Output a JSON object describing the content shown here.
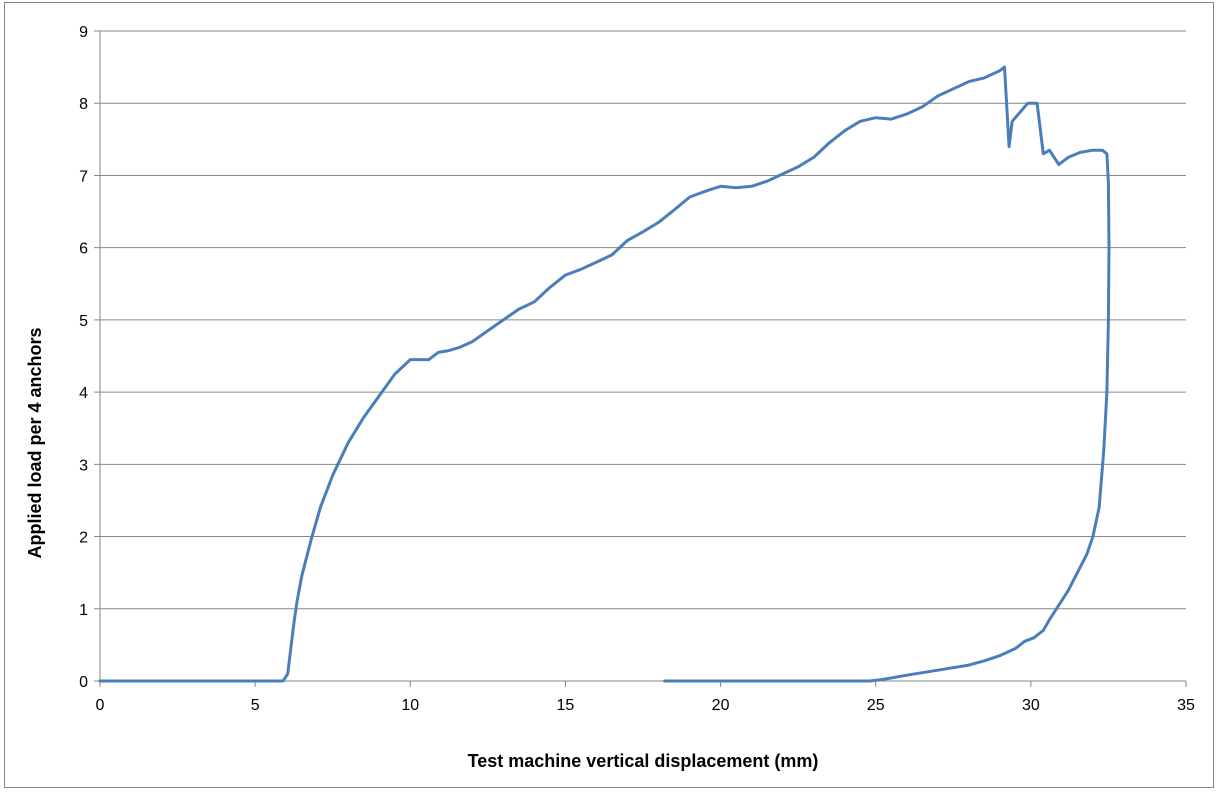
{
  "chart_data": {
    "type": "line",
    "title": "",
    "xlabel": "Test machine vertical displacement (mm)",
    "ylabel": "Applied load per 4 anchors",
    "xlim": [
      0,
      35
    ],
    "ylim": [
      0,
      9
    ],
    "x_ticks": [
      0,
      5,
      10,
      15,
      20,
      25,
      30,
      35
    ],
    "y_ticks": [
      0,
      1,
      2,
      3,
      4,
      5,
      6,
      7,
      8,
      9
    ],
    "x_tick_labels": [
      "0",
      "5",
      "10",
      "15",
      "20",
      "25",
      "30",
      "35"
    ],
    "y_tick_labels": [
      "0",
      "1",
      "2",
      "3",
      "4",
      "5",
      "6",
      "7",
      "8",
      "9"
    ],
    "grid": "horizontal",
    "legend": "none",
    "colors": {
      "series": "#4a7ebb",
      "grid": "#868686",
      "axis": "#868686"
    },
    "series": [
      {
        "x": [
          0,
          2,
          4,
          5.9,
          6.05,
          6.15,
          6.25,
          6.35,
          6.5,
          6.8,
          7.1,
          7.5,
          8.0,
          8.5,
          9.0,
          9.5,
          10.0,
          10.4,
          10.6,
          10.9,
          11.2,
          11.6,
          12.0,
          12.5,
          13.0,
          13.5,
          14.0,
          14.5,
          15.0,
          15.5,
          16.0,
          16.5,
          17.0,
          17.5,
          18.0,
          18.5,
          19.0,
          19.5,
          20.0,
          20.5,
          21.0,
          21.5,
          22.0,
          22.5,
          23.0,
          23.5,
          24.0,
          24.5,
          25.0,
          25.5,
          26.0,
          26.5,
          27.0,
          27.5,
          28.0,
          28.5,
          29.0,
          29.15,
          29.3,
          29.4,
          29.6,
          29.9,
          30.2,
          30.4,
          30.6,
          30.9,
          31.2,
          31.6,
          32.0,
          32.3,
          32.45,
          32.5,
          32.52,
          32.5,
          32.45,
          32.35,
          32.2,
          32.0,
          31.8,
          31.5,
          31.2,
          30.9,
          30.6,
          30.4,
          30.1,
          29.8,
          29.5,
          29.0,
          28.5,
          28.0,
          27.0,
          26.0,
          25.2,
          24.8,
          24.0,
          23.0,
          22.0,
          21.0,
          20.0,
          19.0,
          18.2
        ],
        "y": [
          0,
          0,
          0,
          0,
          0.1,
          0.45,
          0.8,
          1.1,
          1.45,
          1.95,
          2.4,
          2.85,
          3.3,
          3.65,
          3.95,
          4.25,
          4.45,
          4.45,
          4.45,
          4.55,
          4.57,
          4.62,
          4.7,
          4.85,
          5.0,
          5.15,
          5.25,
          5.45,
          5.62,
          5.7,
          5.8,
          5.9,
          6.1,
          6.22,
          6.35,
          6.52,
          6.7,
          6.78,
          6.85,
          6.83,
          6.85,
          6.92,
          7.02,
          7.12,
          7.25,
          7.45,
          7.62,
          7.75,
          7.8,
          7.78,
          7.85,
          7.95,
          8.1,
          8.2,
          8.3,
          8.35,
          8.45,
          8.5,
          7.4,
          7.75,
          7.85,
          8.0,
          8.0,
          7.3,
          7.35,
          7.15,
          7.25,
          7.32,
          7.35,
          7.35,
          7.3,
          6.9,
          6.0,
          5.0,
          4.0,
          3.2,
          2.4,
          2.0,
          1.75,
          1.5,
          1.25,
          1.05,
          0.85,
          0.7,
          0.6,
          0.55,
          0.45,
          0.35,
          0.28,
          0.22,
          0.15,
          0.08,
          0.02,
          0.0,
          0.0,
          0.0,
          0.0,
          0.0,
          0.0,
          0.0,
          0.0
        ]
      }
    ]
  }
}
